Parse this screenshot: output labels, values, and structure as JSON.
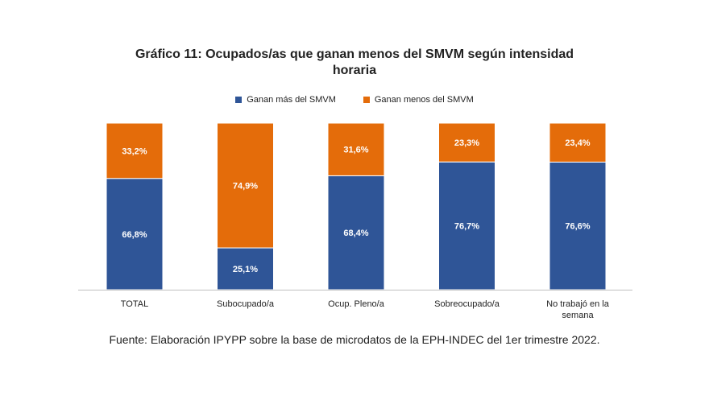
{
  "chart_data": {
    "type": "bar",
    "stacked": true,
    "percent": true,
    "title_line1": "Gráfico 11: Ocupados/as que ganan menos del SMVM según intensidad",
    "title_line2": "horaria",
    "categories": [
      "TOTAL",
      "Subocupado/a",
      "Ocup. Pleno/a",
      "Sobreocupado/a",
      "No trabajó en la semana"
    ],
    "category_lines": [
      [
        "TOTAL"
      ],
      [
        "Subocupado/a"
      ],
      [
        "Ocup. Pleno/a"
      ],
      [
        "Sobreocupado/a"
      ],
      [
        "No trabajó en la",
        "semana"
      ]
    ],
    "series": [
      {
        "name": "Ganan más del SMVM",
        "color": "#2f5597",
        "values": [
          66.8,
          25.1,
          68.4,
          76.7,
          76.6
        ],
        "labels": [
          "66,8%",
          "25,1%",
          "68,4%",
          "76,7%",
          "76,6%"
        ]
      },
      {
        "name": "Ganan menos del SMVM",
        "color": "#e46c0a",
        "values": [
          33.2,
          74.9,
          31.6,
          23.3,
          23.4
        ],
        "labels": [
          "33,2%",
          "74,9%",
          "31,6%",
          "23,3%",
          "23,4%"
        ]
      }
    ],
    "ylim": [
      0,
      100
    ],
    "legend_position": "top-center",
    "grid": false
  },
  "source_note": "Fuente: Elaboración IPYPP sobre la base de microdatos de la EPH-INDEC del 1er trimestre 2022."
}
